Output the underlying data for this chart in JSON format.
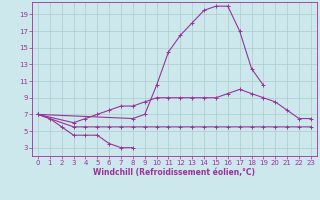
{
  "background_color": "#cce8ec",
  "grid_color": "#aacccc",
  "line_color": "#993399",
  "marker": "+",
  "markersize": 3,
  "linewidth": 0.8,
  "xlabel": "Windchill (Refroidissement éolien,°C)",
  "xlabel_fontsize": 5.5,
  "tick_fontsize": 5,
  "xlim": [
    -0.5,
    23.5
  ],
  "ylim": [
    2.0,
    20.5
  ],
  "yticks": [
    3,
    5,
    7,
    9,
    11,
    13,
    15,
    17,
    19
  ],
  "xticks": [
    0,
    1,
    2,
    3,
    4,
    5,
    6,
    7,
    8,
    9,
    10,
    11,
    12,
    13,
    14,
    15,
    16,
    17,
    18,
    19,
    20,
    21,
    22,
    23
  ],
  "series": [
    {
      "x": [
        0,
        1,
        2,
        3,
        4,
        5,
        6,
        7,
        8
      ],
      "y": [
        7.0,
        6.5,
        5.5,
        4.5,
        4.5,
        4.5,
        3.5,
        3.0,
        3.0
      ]
    },
    {
      "x": [
        0,
        8,
        9,
        10,
        11,
        12,
        13,
        14,
        15,
        16,
        17,
        18,
        19
      ],
      "y": [
        7.0,
        6.5,
        7.0,
        10.5,
        14.5,
        16.5,
        18.0,
        19.5,
        20.0,
        20.0,
        17.0,
        12.5,
        10.5
      ]
    },
    {
      "x": [
        0,
        3,
        4,
        5,
        6,
        7,
        8,
        9,
        10,
        11,
        12,
        13,
        14,
        15,
        16,
        17,
        18,
        19,
        20,
        21,
        22,
        23
      ],
      "y": [
        7.0,
        6.0,
        6.5,
        7.0,
        7.5,
        8.0,
        8.0,
        8.5,
        9.0,
        9.0,
        9.0,
        9.0,
        9.0,
        9.0,
        9.5,
        10.0,
        9.5,
        9.0,
        8.5,
        7.5,
        6.5,
        6.5
      ]
    },
    {
      "x": [
        0,
        3,
        4,
        5,
        6,
        7,
        8,
        9,
        10,
        11,
        12,
        13,
        14,
        15,
        16,
        17,
        18,
        19,
        20,
        21,
        22,
        23
      ],
      "y": [
        7.0,
        5.5,
        5.5,
        5.5,
        5.5,
        5.5,
        5.5,
        5.5,
        5.5,
        5.5,
        5.5,
        5.5,
        5.5,
        5.5,
        5.5,
        5.5,
        5.5,
        5.5,
        5.5,
        5.5,
        5.5,
        5.5
      ]
    }
  ]
}
